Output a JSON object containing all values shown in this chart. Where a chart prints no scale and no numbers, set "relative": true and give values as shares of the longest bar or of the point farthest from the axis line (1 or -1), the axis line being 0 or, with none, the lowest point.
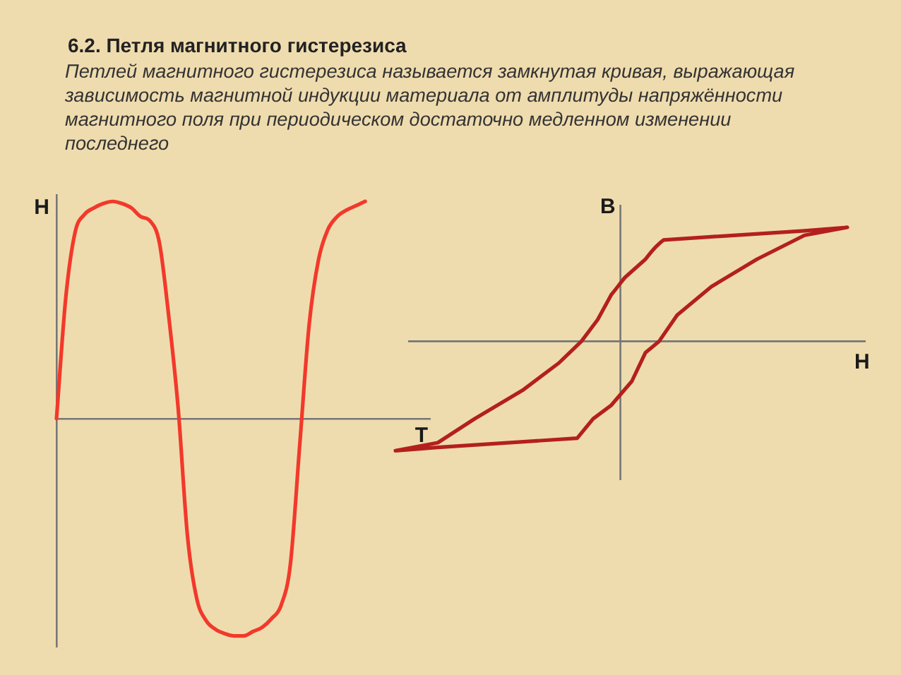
{
  "chart_data": [
    {
      "type": "line",
      "title": "6.2. Петля магнитного гистерезиса",
      "subtitle": "Петлей магнитного гистерезиса называется замкнутая кривая, выражающая зависимость магнитной индукции материала от амплитуды напряжённости магнитного поля при  периодическом достаточно медленном изменении последнего",
      "xlabel": "T",
      "ylabel": "H",
      "relative": true,
      "legend": false,
      "grid": false,
      "marker": "none",
      "categories": [
        null,
        null,
        null,
        null,
        null,
        null,
        null,
        null,
        null,
        null,
        null,
        null,
        null,
        null,
        null,
        null,
        null,
        null,
        null,
        null,
        null,
        null,
        null,
        null,
        null,
        null,
        null,
        null,
        null,
        null,
        null,
        null,
        null,
        null,
        null,
        null,
        null,
        null,
        null,
        null,
        null
      ],
      "series": [
        {
          "color": "#f2392b",
          "values": [
            0,
            0.56,
            0.86,
            0.94,
            0.97,
            0.99,
            1.0,
            0.99,
            0.97,
            0.93,
            0.91,
            0.81,
            0.47,
            0.05,
            -0.54,
            -0.83,
            -0.93,
            -0.97,
            -0.99,
            -1.0,
            -1.0,
            -0.98,
            -0.96,
            -0.92,
            -0.86,
            -0.67,
            -0.12,
            0.43,
            0.73,
            0.87,
            0.93,
            0.96,
            0.98,
            1.0,
            null,
            null,
            null,
            null,
            null,
            null,
            null
          ]
        }
      ]
    },
    {
      "type": "other",
      "xlabel": "H",
      "ylabel": "B"
    }
  ]
}
